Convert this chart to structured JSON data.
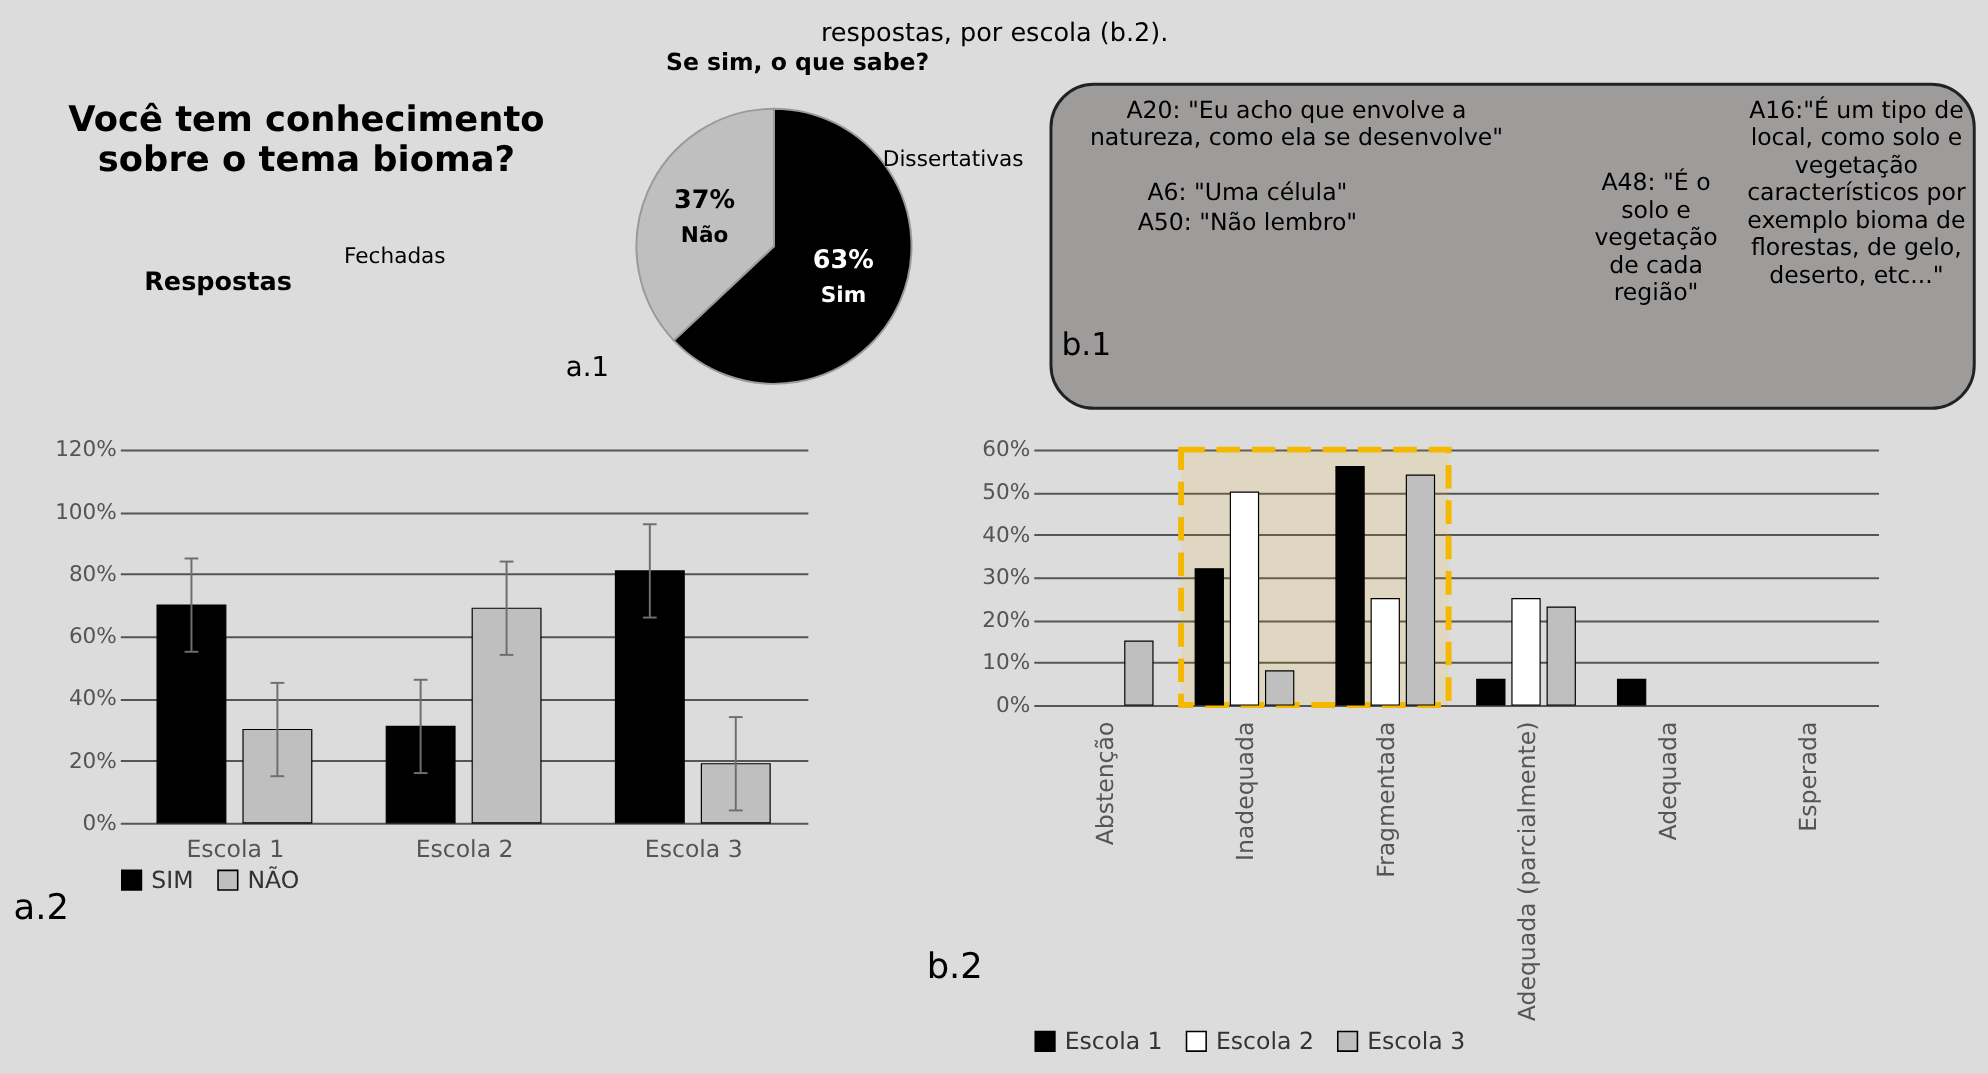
{
  "chart_data": [
    {
      "type": "other",
      "title": "respostas, por escola (b.2).",
      "annotations": [
        "Você tem conhecimento\nsobre o tema bioma?",
        "Respostas",
        "Fechadas"
      ]
    },
    {
      "type": "pie",
      "title": "Se sim, o que sabe?",
      "categories": [
        "Sim",
        "Não"
      ],
      "values": [
        63,
        37
      ],
      "colors": [
        "#000000",
        "#bfbfbf"
      ],
      "value_labels": [
        "63%",
        "37%"
      ],
      "annotations": [
        "a.1",
        "Dissertativas"
      ]
    },
    {
      "type": "other",
      "annotations": [
        "A20: \"Eu acho que envolve a\nnatureza, como ela se desenvolve\"",
        "A6: \"Uma célula\"",
        "A50: \"Não lembro\"",
        "A48: \"É o\nsolo e\nvegetação\nde cada\nregião\"",
        "A16:\"É um tipo de\nlocal, como solo e\nvegetação\ncaracterísticos por\nexemplo bioma de\nflorestas, de gelo,\ndeserto, etc...\"",
        "b.1"
      ]
    },
    {
      "type": "bar",
      "categories": [
        "Escola 1",
        "Escola 2",
        "Escola 3"
      ],
      "series": [
        {
          "name": "SIM",
          "color": "#000000",
          "values": [
            70,
            31,
            81
          ],
          "errors": [
            15,
            15,
            15
          ]
        },
        {
          "name": "NÃO",
          "color": "#bfbfbf",
          "values": [
            30,
            69,
            19
          ],
          "errors": [
            15,
            15,
            15
          ]
        }
      ],
      "ylim": [
        0,
        120
      ],
      "yticks": [
        {
          "value": 0,
          "label": "0%"
        },
        {
          "value": 20,
          "label": "20%"
        },
        {
          "value": 40,
          "label": "40%"
        },
        {
          "value": 60,
          "label": "60%"
        },
        {
          "value": 80,
          "label": "80%"
        },
        {
          "value": 100,
          "label": "100%"
        },
        {
          "value": 120,
          "label": "120%"
        }
      ],
      "grid": "y",
      "legend": "bottom",
      "annotations": [
        "a.2"
      ]
    },
    {
      "type": "bar",
      "categories": [
        "Abstenção",
        "Inadequada",
        "Fragmentada",
        "Adequada (parcialmente)",
        "Adequada",
        "Esperada"
      ],
      "series": [
        {
          "name": "Escola 1",
          "color": "#000000",
          "values": [
            null,
            32,
            56,
            6,
            6,
            null
          ]
        },
        {
          "name": "Escola 2",
          "color": "#ffffff",
          "values": [
            null,
            50,
            25,
            25,
            null,
            null
          ]
        },
        {
          "name": "Escola 3",
          "color": "#bfbfbf",
          "values": [
            15,
            8,
            54,
            23,
            null,
            null
          ]
        }
      ],
      "ylim": [
        0,
        60
      ],
      "yticks": [
        {
          "value": 0,
          "label": "0%"
        },
        {
          "value": 10,
          "label": "10%"
        },
        {
          "value": 20,
          "label": "20%"
        },
        {
          "value": 30,
          "label": "30%"
        },
        {
          "value": 40,
          "label": "40%"
        },
        {
          "value": 50,
          "label": "50%"
        },
        {
          "value": 60,
          "label": "60%"
        }
      ],
      "grid": "y",
      "legend": "bottom",
      "annotations": [
        "b.2"
      ],
      "bands": [
        {
          "axis": "x",
          "from": "Inadequada",
          "to": "Fragmentada",
          "color": "#f5b800"
        }
      ]
    }
  ]
}
